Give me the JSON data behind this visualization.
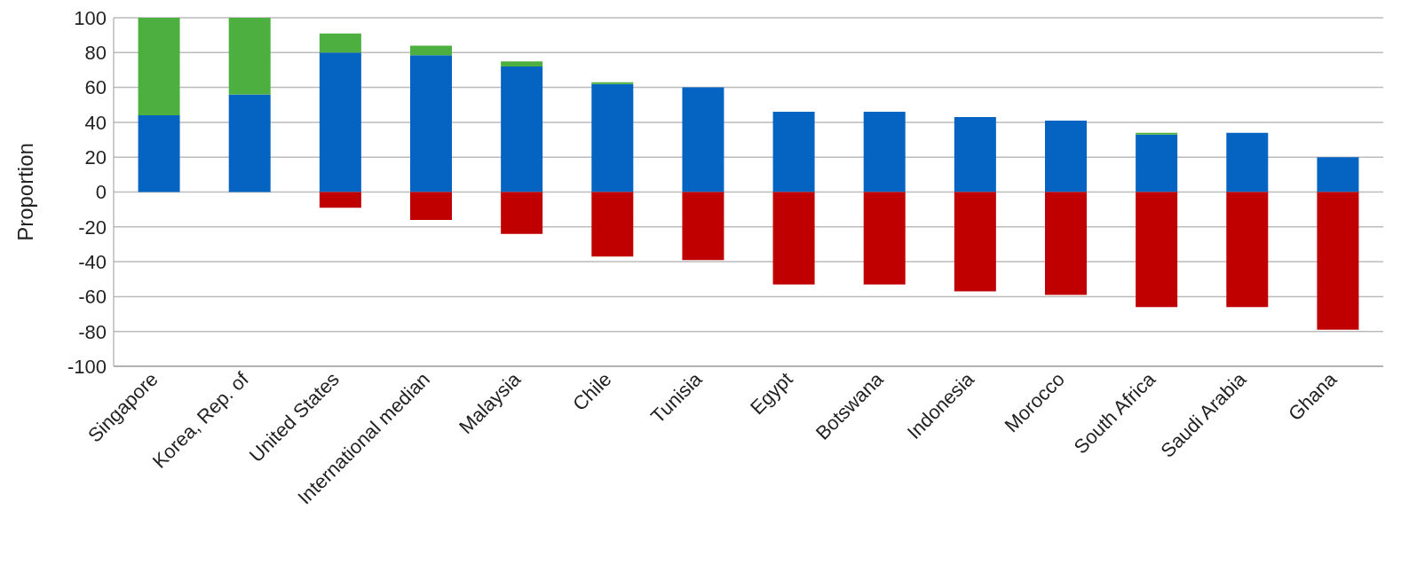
{
  "chart_data": {
    "type": "bar",
    "stacked": true,
    "ylabel": "Proportion",
    "categories": [
      "Singapore",
      "Korea, Rep. of",
      "United States",
      "International median",
      "Malaysia",
      "Chile",
      "Tunisia",
      "Egypt",
      "Botswana",
      "Indonesia",
      "Morocco",
      "South Africa",
      "Saudi Arabia",
      "Ghana"
    ],
    "series": [
      {
        "color": "#0563c1",
        "values": [
          44,
          56,
          80,
          78.5,
          72,
          62,
          60,
          46,
          46,
          43,
          41,
          33,
          34,
          20
        ]
      },
      {
        "color": "#4daf3f",
        "values": [
          56,
          44,
          11,
          5.5,
          3,
          1,
          null,
          null,
          null,
          null,
          null,
          1,
          null,
          null
        ]
      },
      {
        "color": "#c00000",
        "values": [
          null,
          null,
          -9,
          -16,
          -24,
          -37,
          -39,
          -53,
          -53,
          -57,
          -59,
          -66,
          -66,
          -79
        ]
      }
    ],
    "ylim": [
      -100,
      100
    ],
    "yticks": [
      -100,
      -80,
      -60,
      -40,
      -20,
      0,
      20,
      40,
      60,
      80,
      100
    ],
    "grid": "y",
    "legend": false
  }
}
